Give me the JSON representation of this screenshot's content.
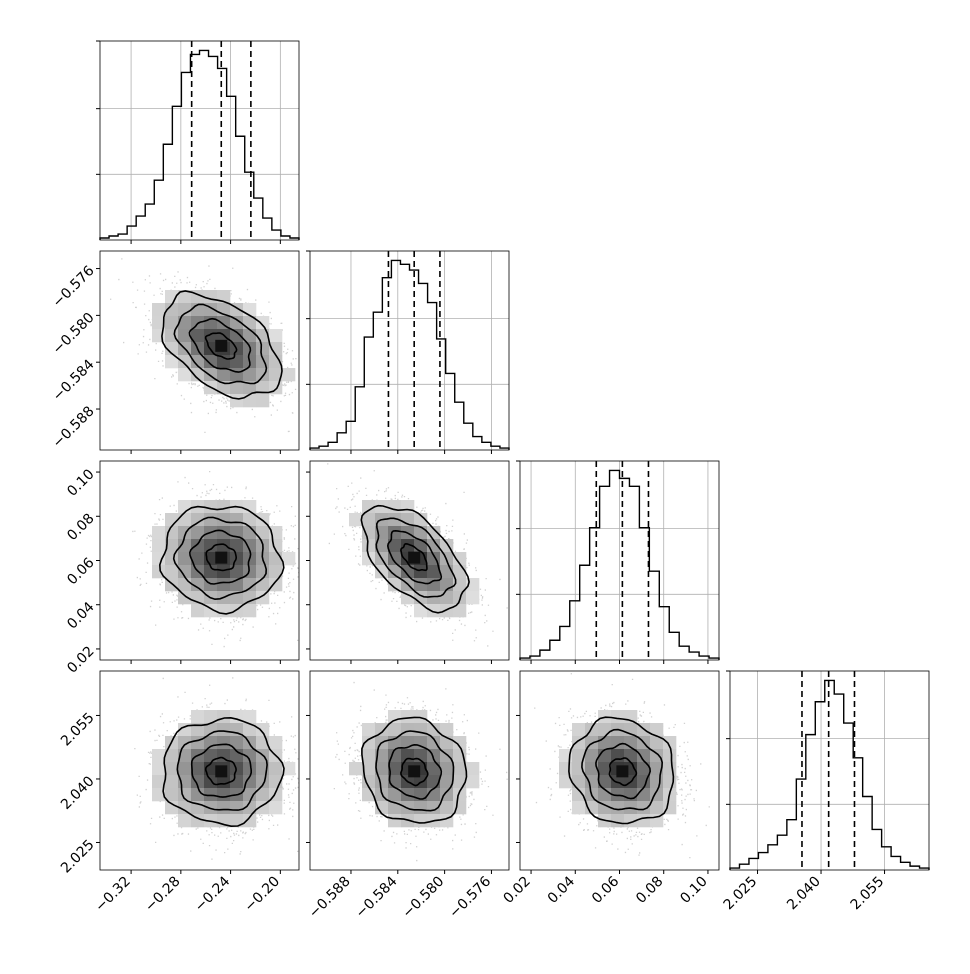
{
  "chart_data": {
    "type": "corner",
    "title": "",
    "parameters": [
      {
        "label": "",
        "range": [
          -0.345,
          -0.185
        ],
        "ticks": [
          "-0.32",
          "-0.28",
          "-0.24",
          "-0.20"
        ],
        "tick_values": [
          -0.32,
          -0.28,
          -0.24,
          -0.2
        ],
        "quantiles": [
          -0.2713,
          -0.2475,
          -0.2237
        ],
        "histogram": [
          1,
          2,
          3,
          7,
          12,
          18,
          30,
          48,
          67,
          84,
          93,
          95,
          92,
          86,
          72,
          52,
          34,
          21,
          11,
          5,
          2,
          1
        ]
      },
      {
        "label": "",
        "range": [
          -0.5915,
          -0.5745
        ],
        "ticks": [
          "-0.588",
          "-0.584",
          "-0.580",
          "-0.576"
        ],
        "tick_values": [
          -0.588,
          -0.584,
          -0.58,
          -0.576
        ],
        "quantiles": [
          -0.5848,
          -0.5826,
          -0.5804
        ],
        "histogram": [
          1,
          2,
          4,
          9,
          15,
          33,
          59,
          72,
          90,
          99,
          97,
          94,
          87,
          77,
          58,
          40,
          25,
          14,
          7,
          4,
          2,
          1
        ]
      },
      {
        "label": "",
        "range": [
          0.015,
          0.105
        ],
        "ticks": [
          "0.02",
          "0.04",
          "0.06",
          "0.08",
          "0.10"
        ],
        "tick_values": [
          0.02,
          0.04,
          0.06,
          0.08,
          0.1
        ],
        "quantiles": [
          0.0495,
          0.0613,
          0.0731
        ],
        "histogram": [
          1,
          2,
          5,
          10,
          17,
          30,
          48,
          67,
          88,
          96,
          92,
          88,
          67,
          45,
          27,
          14,
          7,
          4,
          2,
          1
        ]
      },
      {
        "label": "",
        "range": [
          2.0185,
          2.0655
        ],
        "ticks": [
          "2.025",
          "2.040",
          "2.055"
        ],
        "tick_values": [
          2.025,
          2.04,
          2.055
        ],
        "quantiles": [
          2.0355,
          2.0418,
          2.0479
        ],
        "histogram": [
          1,
          3,
          6,
          9,
          13,
          18,
          26,
          47,
          70,
          87,
          98,
          91,
          76,
          58,
          38,
          21,
          12,
          7,
          4,
          2,
          1
        ]
      }
    ],
    "pairs": [
      {
        "x": 0,
        "y": 1,
        "mean": [
          -0.2475,
          -0.5826
        ],
        "sd": [
          0.0238,
          0.0022
        ],
        "rho": -0.45
      },
      {
        "x": 0,
        "y": 2,
        "mean": [
          -0.2475,
          0.0613
        ],
        "sd": [
          0.0238,
          0.0118
        ],
        "rho": -0.05
      },
      {
        "x": 1,
        "y": 2,
        "mean": [
          -0.5826,
          0.0613
        ],
        "sd": [
          0.0022,
          0.0118
        ],
        "rho": -0.55
      },
      {
        "x": 0,
        "y": 3,
        "mean": [
          -0.2475,
          2.0418
        ],
        "sd": [
          0.0238,
          0.0062
        ],
        "rho": 0.0
      },
      {
        "x": 1,
        "y": 3,
        "mean": [
          -0.5826,
          2.0418
        ],
        "sd": [
          0.0022,
          0.0062
        ],
        "rho": -0.1
      },
      {
        "x": 2,
        "y": 3,
        "mean": [
          0.0613,
          2.0418
        ],
        "sd": [
          0.0118,
          0.0062
        ],
        "rho": -0.1
      }
    ],
    "contour_levels_sigma": [
      0.5,
      1.0,
      1.5,
      2.0
    ],
    "grid": true,
    "colors": {
      "line": "#000000",
      "points": "#9a9a9a",
      "grid": "#b0b0b0"
    }
  }
}
